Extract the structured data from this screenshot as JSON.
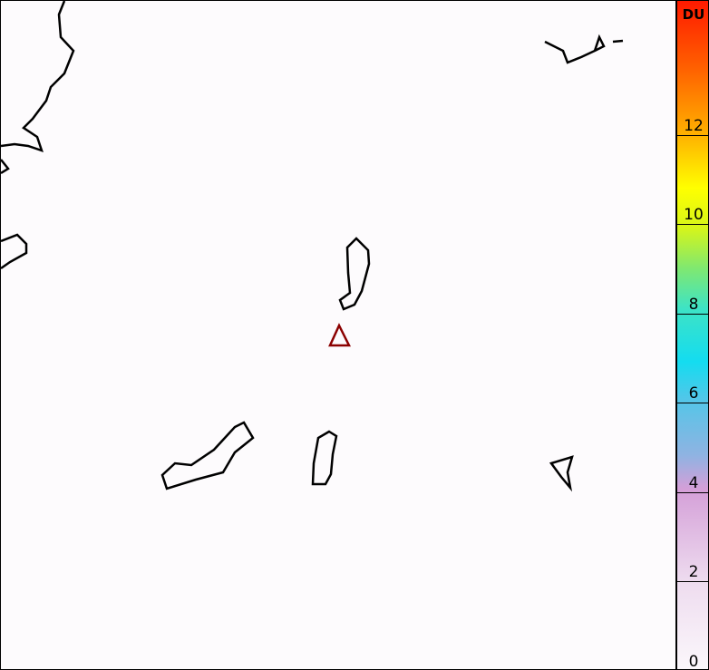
{
  "colorbar": {
    "unit": "DU",
    "min": 0,
    "max": 15,
    "ticks": [
      "0",
      "2",
      "4",
      "6",
      "8",
      "10",
      "12"
    ],
    "tick_values": [
      0,
      2,
      4,
      6,
      8,
      10,
      12
    ]
  },
  "map": {
    "marker": {
      "shape": "triangle",
      "color": "#8b0000"
    },
    "coastline_color": "#000000",
    "background_color": "#fdfbfd"
  }
}
